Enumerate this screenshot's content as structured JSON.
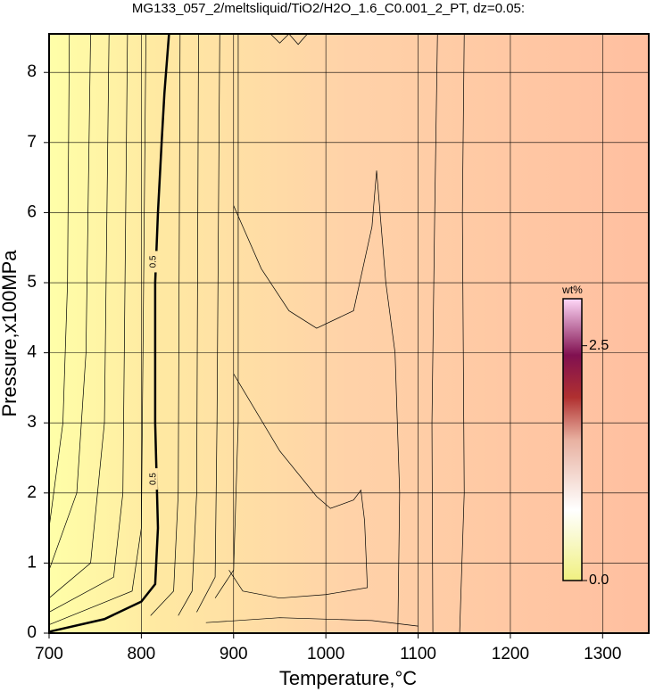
{
  "chart_data": {
    "type": "contour",
    "title": "MG133_057_2/meltsliquid/TiO2/H2O_1.6_C0.001_2_PT, dz=0.05:",
    "xlabel": "Temperature,°C",
    "ylabel": "Pressure,x100MPa",
    "xlim": [
      700,
      1350
    ],
    "xticks": [
      700,
      800,
      900,
      1000,
      1100,
      1200,
      1300
    ],
    "ylim": [
      0,
      8.55
    ],
    "yticks": [
      0,
      1,
      2,
      3,
      4,
      5,
      6,
      7,
      8
    ],
    "grid": true,
    "colorbar": {
      "label": "wt%",
      "lim": [
        0,
        3.0
      ],
      "ticks": [
        {
          "value": 0,
          "label": "0.0"
        },
        {
          "value": 2.5,
          "label": "2.5"
        }
      ]
    },
    "contours": [
      {
        "x": [
          700,
          715,
          720,
          722
        ],
        "y": [
          1.5,
          3,
          5,
          8.55
        ]
      },
      {
        "x": [
          700,
          730,
          740,
          745
        ],
        "y": [
          0.9,
          2,
          4,
          8.55
        ]
      },
      {
        "x": [
          700,
          745,
          760,
          765
        ],
        "y": [
          0.5,
          1,
          3,
          8.55
        ]
      },
      {
        "x": [
          700,
          770,
          780,
          785
        ],
        "y": [
          0.3,
          0.8,
          2,
          8.55
        ]
      },
      {
        "x": [
          700,
          790,
          800,
          805
        ],
        "y": [
          0.12,
          0.6,
          1.5,
          8.55
        ]
      },
      {
        "x": [
          700,
          760,
          800,
          815,
          818,
          815,
          815,
          818,
          822,
          825,
          830
        ],
        "y": [
          0.02,
          0.2,
          0.45,
          0.7,
          1.5,
          3,
          5,
          6,
          7,
          7.7,
          8.55
        ],
        "bold": true
      },
      {
        "x": [
          810,
          835,
          840,
          842
        ],
        "y": [
          0.25,
          0.6,
          2,
          8.55
        ]
      },
      {
        "x": [
          840,
          855,
          860,
          862
        ],
        "y": [
          0.25,
          0.6,
          2,
          8.55
        ]
      },
      {
        "x": [
          860,
          880,
          882,
          885
        ],
        "y": [
          0.3,
          0.8,
          3,
          8.55
        ]
      },
      {
        "x": [
          880,
          900,
          905,
          905
        ],
        "y": [
          0.5,
          0.9,
          3,
          8.55
        ]
      },
      {
        "x": [
          900,
          930,
          960,
          990,
          1030,
          1050,
          1055,
          1065,
          1075,
          1080,
          1078
        ],
        "y": [
          6.1,
          5.2,
          4.6,
          4.35,
          4.6,
          5.8,
          6.6,
          5,
          4,
          2,
          0
        ]
      },
      {
        "x": [
          900,
          950,
          990,
          1005,
          1030,
          1038,
          1042,
          1045,
          1000,
          950,
          910,
          895
        ],
        "y": [
          3.7,
          2.6,
          1.95,
          1.78,
          1.9,
          2.04,
          1.6,
          0.65,
          0.55,
          0.5,
          0.6,
          0.9
        ]
      },
      {
        "x": [
          1116,
          1115,
          1118,
          1121
        ],
        "y": [
          0,
          3,
          6,
          8.55
        ]
      },
      {
        "x": [
          1145,
          1150,
          1148,
          1150
        ],
        "y": [
          0,
          2,
          6,
          8.55
        ]
      },
      {
        "x": [
          870,
          950,
          1050,
          1100
        ],
        "y": [
          0.15,
          0.22,
          0.18,
          0.1
        ]
      },
      {
        "x": [
          940,
          950,
          960,
          970,
          980
        ],
        "y": [
          8.55,
          8.42,
          8.55,
          8.4,
          8.55
        ]
      }
    ],
    "contour_labels": [
      {
        "value": 0.5,
        "x": 813,
        "y": 5.3
      },
      {
        "value": 0.5,
        "x": 813,
        "y": 2.2
      }
    ]
  }
}
